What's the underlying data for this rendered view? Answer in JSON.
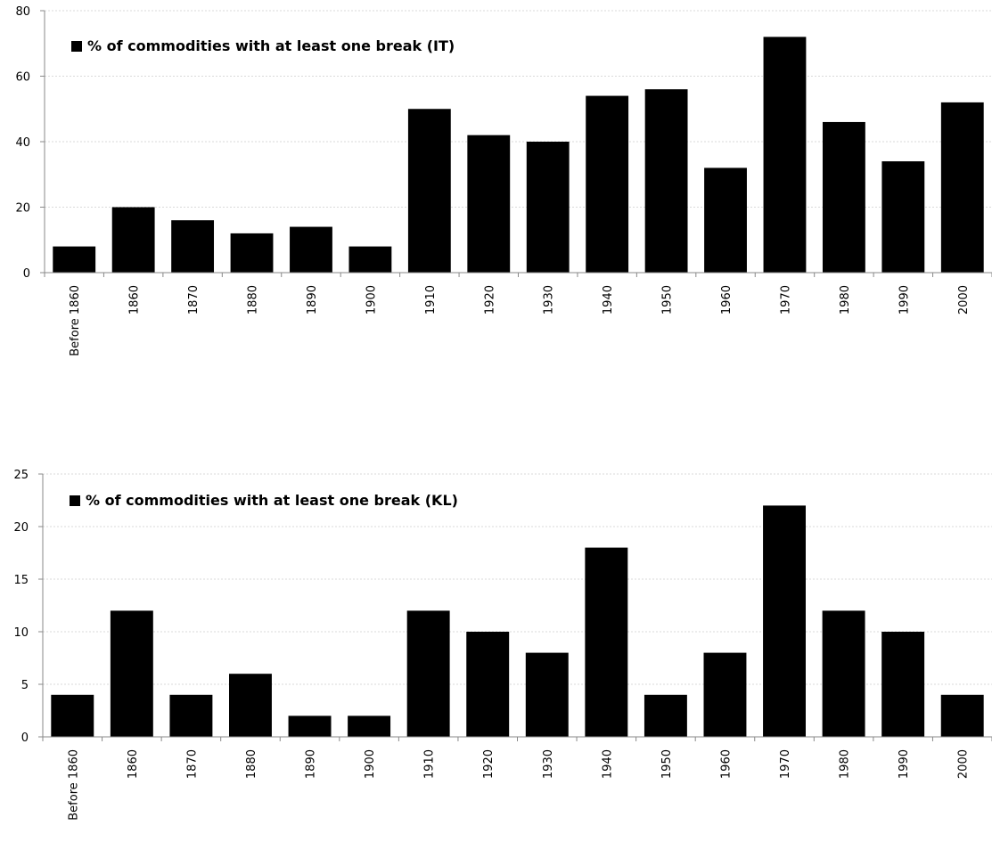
{
  "chart_data": [
    {
      "type": "bar",
      "categories": [
        "Before 1860",
        "1860",
        "1870",
        "1880",
        "1890",
        "1900",
        "1910",
        "1920",
        "1930",
        "1940",
        "1950",
        "1960",
        "1970",
        "1980",
        "1990",
        "2000"
      ],
      "series": [
        {
          "name": "% of commodities with at least one break (IT)",
          "values": [
            8,
            20,
            16,
            12,
            14,
            8,
            50,
            42,
            40,
            54,
            56,
            32,
            72,
            46,
            34,
            52
          ]
        }
      ],
      "ylim": [
        0,
        80
      ],
      "yticks": [
        0,
        20,
        40,
        60,
        80
      ],
      "title": "",
      "xlabel": "",
      "ylabel": "",
      "grid": true,
      "legend": "top-left",
      "bar_color": "#000000"
    },
    {
      "type": "bar",
      "categories": [
        "Before 1860",
        "1860",
        "1870",
        "1880",
        "1890",
        "1900",
        "1910",
        "1920",
        "1930",
        "1940",
        "1950",
        "1960",
        "1970",
        "1980",
        "1990",
        "2000"
      ],
      "series": [
        {
          "name": "% of commodities with at least one break (KL)",
          "values": [
            4,
            12,
            4,
            6,
            2,
            2,
            12,
            10,
            8,
            18,
            4,
            8,
            22,
            12,
            10,
            4
          ]
        }
      ],
      "ylim": [
        0,
        25
      ],
      "yticks": [
        0,
        5,
        10,
        15,
        20,
        25
      ],
      "title": "",
      "xlabel": "",
      "ylabel": "",
      "grid": true,
      "legend": "top-left",
      "bar_color": "#000000"
    }
  ]
}
